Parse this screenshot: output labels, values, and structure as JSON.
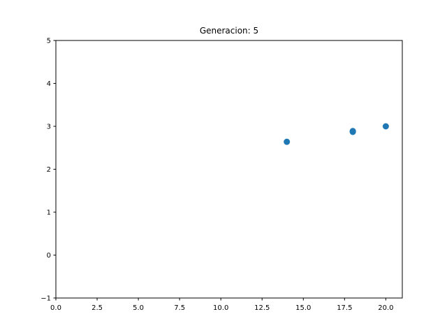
{
  "chart_data": {
    "type": "scatter",
    "title": "Generacion: 5",
    "xlabel": "",
    "ylabel": "",
    "xlim": [
      0,
      21
    ],
    "ylim": [
      -1,
      5
    ],
    "xticks": [
      0.0,
      2.5,
      5.0,
      7.5,
      10.0,
      12.5,
      15.0,
      17.5,
      20.0
    ],
    "xtick_labels": [
      "0.0",
      "2.5",
      "5.0",
      "7.5",
      "10.0",
      "12.5",
      "15.0",
      "17.5",
      "20.0"
    ],
    "yticks": [
      -1,
      0,
      1,
      2,
      3,
      4,
      5
    ],
    "ytick_labels": [
      "−1",
      "0",
      "1",
      "2",
      "3",
      "4",
      "5"
    ],
    "grid": false,
    "series": [
      {
        "color": "#1f77b4",
        "points": [
          {
            "x": 14.0,
            "y": 2.64
          },
          {
            "x": 18.0,
            "y": 2.88
          },
          {
            "x": 18.0,
            "y": 2.89
          },
          {
            "x": 18.0,
            "y": 2.87
          },
          {
            "x": 20.0,
            "y": 3.0
          }
        ]
      }
    ]
  }
}
